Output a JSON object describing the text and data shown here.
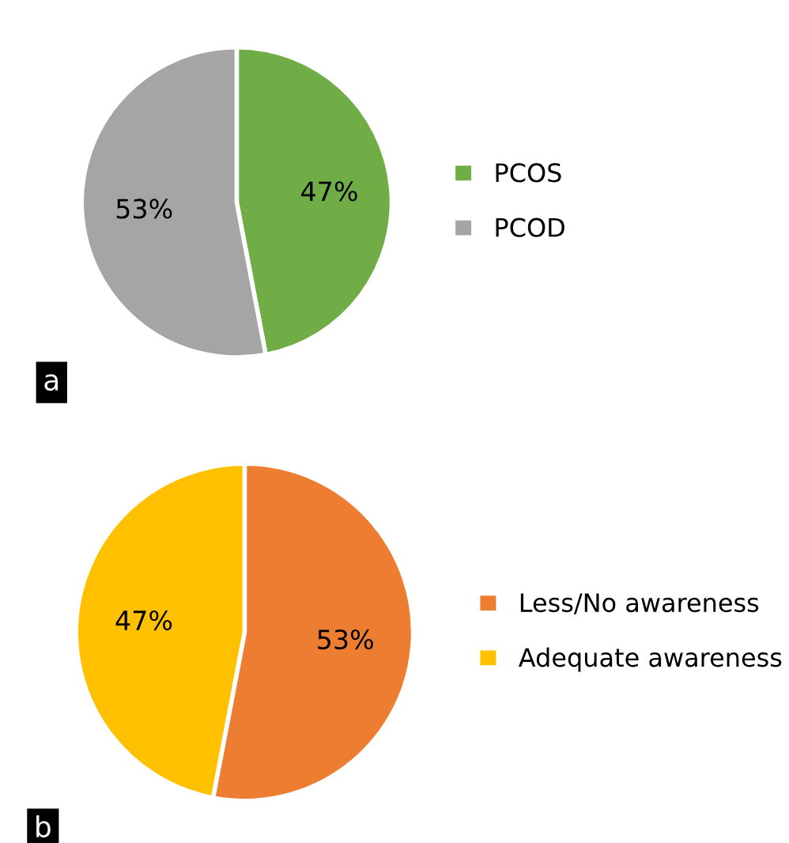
{
  "chart_data": [
    {
      "type": "pie",
      "categories": [
        "PCOS",
        "PCOD"
      ],
      "values": [
        47,
        53
      ],
      "colors": [
        "#70ad47",
        "#a5a5a5"
      ],
      "value_labels": [
        "47%",
        "53%"
      ],
      "legend": "right",
      "annotations": [
        "a"
      ]
    },
    {
      "type": "pie",
      "categories": [
        "Less/No awareness",
        "Adequate awareness"
      ],
      "values": [
        53,
        47
      ],
      "colors": [
        "#ed7d31",
        "#ffc000"
      ],
      "value_labels": [
        "53%",
        "47%"
      ],
      "legend": "right",
      "annotations": [
        "b"
      ]
    }
  ]
}
